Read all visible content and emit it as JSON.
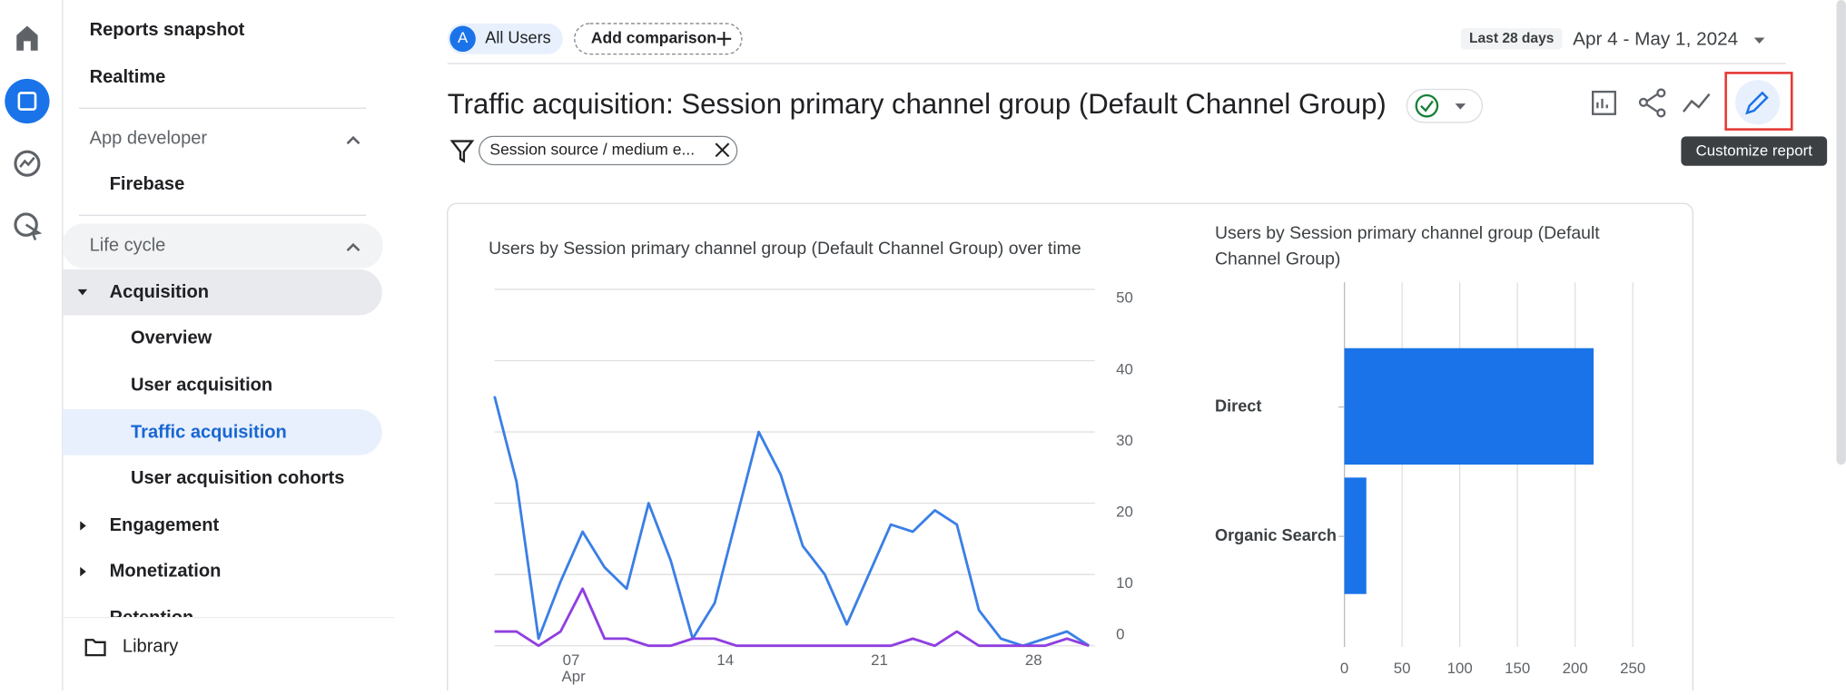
{
  "sidebar": {
    "items": [
      "Reports snapshot",
      "Realtime"
    ],
    "app_developer": "App developer",
    "firebase": "Firebase",
    "life_cycle": "Life cycle",
    "acquisition": "Acquisition",
    "acquisition_items": [
      "Overview",
      "User acquisition",
      "Traffic acquisition",
      "User acquisition cohorts"
    ],
    "engagement": "Engagement",
    "monetization": "Monetization",
    "retention": "Retention",
    "library": "Library"
  },
  "header": {
    "segment_badge": "A",
    "segment": "All Users",
    "add_comparison": "Add comparison",
    "date_label": "Last 28 days",
    "date_range": "Apr 4 - May 1, 2024"
  },
  "report": {
    "title": "Traffic acquisition: Session primary channel group (Default Channel Group)",
    "filter": "Session source / medium e...",
    "tooltip": "Customize report"
  },
  "chart_data": [
    {
      "type": "line",
      "title": "Users by Session primary channel group (Default Channel Group) over time",
      "categories": [
        null,
        null,
        null,
        "07",
        null,
        null,
        null,
        null,
        null,
        null,
        "14",
        null,
        null,
        null,
        null,
        null,
        null,
        "21",
        null,
        null,
        null,
        null,
        null,
        null,
        "28",
        null,
        null,
        null
      ],
      "month_label": "Apr",
      "series": [
        {
          "color": "#3b7fe6",
          "values": [
            35,
            23,
            1,
            9,
            16,
            11,
            8,
            20,
            12,
            1,
            6,
            18,
            30,
            24,
            14,
            10,
            3,
            10,
            17,
            16,
            19,
            17,
            5,
            1,
            0,
            1,
            2,
            0
          ]
        },
        {
          "color": "#8f3fe0",
          "values": [
            2,
            2,
            0,
            2,
            8,
            1,
            1,
            0,
            0,
            1,
            1,
            0,
            0,
            0,
            0,
            0,
            0,
            0,
            0,
            1,
            0,
            2,
            0,
            0,
            0,
            0,
            1,
            0
          ]
        }
      ],
      "ylim": [
        0,
        50
      ],
      "yticks": [
        0,
        10,
        20,
        30,
        40,
        50
      ],
      "grid": true,
      "y_axis_side": "right"
    },
    {
      "type": "bar",
      "orientation": "horizontal",
      "title": "Users by Session primary channel group (Default Channel Group)",
      "categories": [
        "Direct",
        "Organic Search"
      ],
      "values": [
        216,
        19
      ],
      "color": "#1a73e8",
      "xlim": [
        0,
        250
      ],
      "xticks": [
        0,
        50,
        100,
        150,
        200,
        250
      ],
      "grid": true
    }
  ]
}
